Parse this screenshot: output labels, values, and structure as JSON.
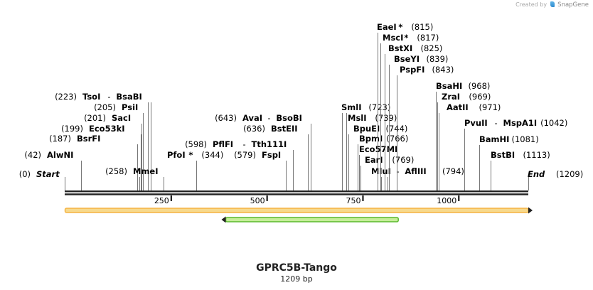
{
  "credit": {
    "prefix": "Created by",
    "brand": "SnapGene"
  },
  "construct": {
    "name": "GPRC5B-Tango",
    "length_label": "1209 bp",
    "length": 1209
  },
  "axis": {
    "ticks": [
      250,
      500,
      750,
      1000
    ]
  },
  "colors": {
    "feature_forward": "#f5b342",
    "feature_forward_fill": "#f7d98c",
    "feature_reverse": "#5ab82c",
    "feature_reverse_fill": "#c6ee9a"
  },
  "features": [
    {
      "start": 1,
      "end": 1209,
      "strand": "forward"
    },
    {
      "start": 420,
      "end": 870,
      "strand": "reverse"
    }
  ],
  "terminals": [
    {
      "text": "Start",
      "pos": "(0)",
      "site": 0
    },
    {
      "text": "End",
      "pos": "(1209)",
      "site": 1209
    }
  ],
  "sites": [
    {
      "name": "AlwNI",
      "pos": "(42)",
      "site": 42,
      "star": false
    },
    {
      "name": "BsrFI",
      "pos": "(187)",
      "site": 187,
      "star": false
    },
    {
      "name": "Eco53kI",
      "pos": "(199)",
      "site": 199,
      "star": false
    },
    {
      "name": "SacI",
      "pos": "(201)",
      "site": 201,
      "star": false
    },
    {
      "name": "PsiI",
      "pos": "(205)",
      "site": 205,
      "star": false
    },
    {
      "name": "TsoI",
      "pos": "(223)",
      "site": 223,
      "star": false,
      "pair": "BsaBI"
    },
    {
      "name": "MmeI",
      "pos": "(258)",
      "site": 258,
      "star": false
    },
    {
      "name": "PfoI",
      "pos": "(344)",
      "site": 344,
      "star": true
    },
    {
      "name": "FspI",
      "pos": "(579)",
      "site": 579,
      "star": false
    },
    {
      "name": "PflFI",
      "pos": "(598)",
      "site": 598,
      "star": false,
      "pair": "Tth111I"
    },
    {
      "name": "BstEII",
      "pos": "(636)",
      "site": 636,
      "star": false
    },
    {
      "name": "AvaI",
      "pos": "(643)",
      "site": 643,
      "star": false,
      "pair": "BsoBI"
    },
    {
      "name": "SmlI",
      "pos": "(723)",
      "site": 723,
      "star": false
    },
    {
      "name": "MslI",
      "pos": "(739)",
      "site": 739,
      "star": false
    },
    {
      "name": "BpuEI",
      "pos": "(744)",
      "site": 744,
      "star": false
    },
    {
      "name": "BpmI",
      "pos": "(766)",
      "site": 766,
      "star": false
    },
    {
      "name": "Eco57MI",
      "pos": "",
      "site": 766,
      "star": false
    },
    {
      "name": "EarI",
      "pos": "(769)",
      "site": 769,
      "star": false
    },
    {
      "name": "MluI",
      "pos": "(794)",
      "site": 794,
      "star": false,
      "pair": "AflIII"
    },
    {
      "name": "EaeI",
      "pos": "(815)",
      "site": 815,
      "star": true
    },
    {
      "name": "MscI",
      "pos": "(817)",
      "site": 817,
      "star": true
    },
    {
      "name": "BstXI",
      "pos": "(825)",
      "site": 825,
      "star": false
    },
    {
      "name": "BseYI",
      "pos": "(839)",
      "site": 839,
      "star": false
    },
    {
      "name": "PspFI",
      "pos": "(843)",
      "site": 843,
      "star": false
    },
    {
      "name": "BsaHI",
      "pos": "(968)",
      "site": 968,
      "star": false
    },
    {
      "name": "ZraI",
      "pos": "(969)",
      "site": 969,
      "star": false
    },
    {
      "name": "AatII",
      "pos": "(971)",
      "site": 971,
      "star": false
    },
    {
      "name": "PvuII",
      "pos": "(1042)",
      "site": 1042,
      "star": false,
      "pair": "MspA1I"
    },
    {
      "name": "BamHI",
      "pos": "(1081)",
      "site": 1081,
      "star": false
    },
    {
      "name": "BstBI",
      "pos": "(1113)",
      "site": 1113,
      "star": false
    }
  ]
}
